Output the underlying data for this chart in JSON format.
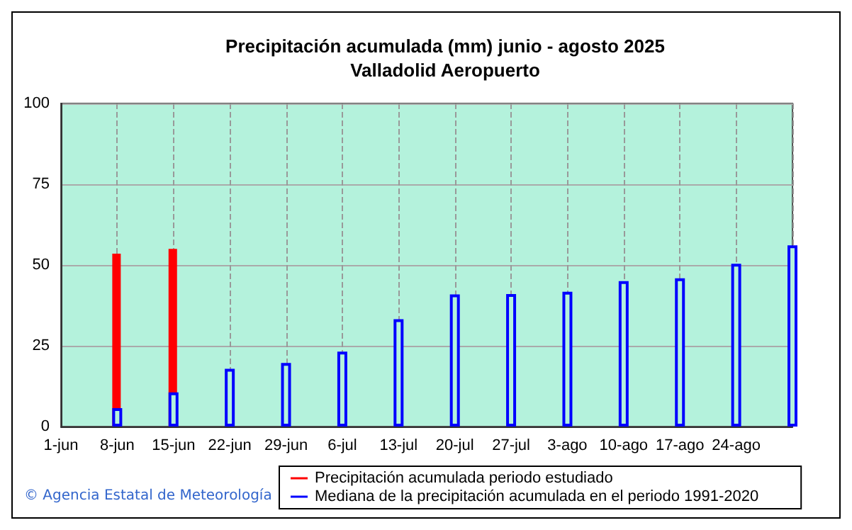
{
  "chart_data": {
    "type": "bar",
    "title": "Precipitación acumulada (mm) junio - agosto 2025",
    "subtitle": "Valladolid Aeropuerto",
    "categories": [
      "1-jun",
      "8-jun",
      "15-jun",
      "22-jun",
      "29-jun",
      "6-jul",
      "13-jul",
      "20-jul",
      "27-jul",
      "3-ago",
      "10-ago",
      "17-ago",
      "24-ago",
      null
    ],
    "series": [
      {
        "name": "Precipitación acumulada periodo estudiado",
        "color": "#ff0000",
        "values": [
          null,
          53.5,
          55.0,
          null,
          null,
          null,
          null,
          null,
          null,
          null,
          null,
          null,
          null,
          null
        ]
      },
      {
        "name": "Mediana de la precipitación acumulada en el periodo 1991-2020",
        "color": "#0000ff",
        "values": [
          null,
          5.7,
          10.6,
          17.9,
          19.7,
          23.2,
          33.2,
          40.9,
          41.0,
          41.7,
          45.0,
          45.9,
          50.4,
          56.1
        ]
      }
    ],
    "ylim": [
      0,
      100
    ],
    "yticks": [
      0,
      25,
      50,
      75,
      100
    ],
    "grid": true,
    "legend": "bottom",
    "annotations": [
      "© Agencia Estatal de Meteorología"
    ]
  }
}
